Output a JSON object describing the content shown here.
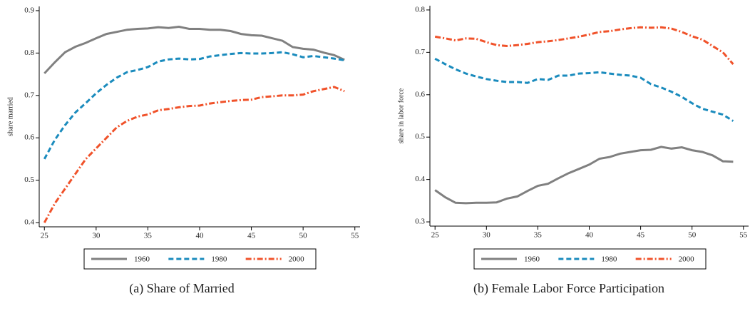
{
  "chart_data": [
    {
      "type": "line",
      "caption": "(a) Share of Married",
      "y_label": "share married",
      "x": [
        25,
        26,
        27,
        28,
        29,
        30,
        31,
        32,
        33,
        34,
        35,
        36,
        37,
        38,
        39,
        40,
        41,
        42,
        43,
        44,
        45,
        46,
        47,
        48,
        49,
        50,
        51,
        52,
        53,
        54
      ],
      "xlim": [
        24.5,
        55.5
      ],
      "xticks": [
        25,
        30,
        35,
        40,
        45,
        50,
        55
      ],
      "ylim": [
        0.39,
        0.91
      ],
      "yticks": [
        0.4,
        0.5,
        0.6,
        0.7,
        0.8,
        0.9
      ],
      "series": [
        {
          "name": "1960",
          "color": "#808080",
          "values": [
            0.752,
            0.778,
            0.802,
            0.815,
            0.824,
            0.835,
            0.845,
            0.85,
            0.855,
            0.857,
            0.858,
            0.861,
            0.859,
            0.862,
            0.857,
            0.857,
            0.855,
            0.855,
            0.852,
            0.845,
            0.842,
            0.841,
            0.835,
            0.829,
            0.814,
            0.81,
            0.808,
            0.801,
            0.795,
            0.784
          ]
        },
        {
          "name": "1980",
          "color": "#1a8bbd",
          "values": [
            0.55,
            0.595,
            0.63,
            0.66,
            0.682,
            0.705,
            0.725,
            0.742,
            0.755,
            0.76,
            0.767,
            0.78,
            0.785,
            0.787,
            0.785,
            0.786,
            0.792,
            0.795,
            0.798,
            0.8,
            0.799,
            0.799,
            0.8,
            0.802,
            0.797,
            0.79,
            0.793,
            0.79,
            0.787,
            0.783
          ]
        },
        {
          "name": "2000",
          "color": "#f0522a",
          "values": [
            0.4,
            0.445,
            0.48,
            0.515,
            0.55,
            0.575,
            0.6,
            0.625,
            0.64,
            0.65,
            0.655,
            0.665,
            0.668,
            0.672,
            0.675,
            0.676,
            0.681,
            0.684,
            0.687,
            0.689,
            0.69,
            0.696,
            0.698,
            0.7,
            0.7,
            0.702,
            0.71,
            0.715,
            0.72,
            0.71
          ]
        }
      ]
    },
    {
      "type": "line",
      "caption": "(b) Female Labor Force Participation",
      "y_label": "share in labor force",
      "x": [
        25,
        26,
        27,
        28,
        29,
        30,
        31,
        32,
        33,
        34,
        35,
        36,
        37,
        38,
        39,
        40,
        41,
        42,
        43,
        44,
        45,
        46,
        47,
        48,
        49,
        50,
        51,
        52,
        53,
        54
      ],
      "xlim": [
        24.5,
        55.5
      ],
      "xticks": [
        25,
        30,
        35,
        40,
        45,
        50,
        55
      ],
      "ylim": [
        0.29,
        0.81
      ],
      "yticks": [
        0.3,
        0.4,
        0.5,
        0.6,
        0.7,
        0.8
      ],
      "series": [
        {
          "name": "1960",
          "color": "#808080",
          "values": [
            0.375,
            0.358,
            0.345,
            0.344,
            0.345,
            0.345,
            0.346,
            0.355,
            0.36,
            0.373,
            0.385,
            0.39,
            0.403,
            0.415,
            0.425,
            0.435,
            0.449,
            0.453,
            0.461,
            0.465,
            0.469,
            0.47,
            0.477,
            0.473,
            0.476,
            0.469,
            0.465,
            0.457,
            0.443,
            0.442
          ]
        },
        {
          "name": "1980",
          "color": "#1a8bbd",
          "values": [
            0.685,
            0.672,
            0.66,
            0.65,
            0.643,
            0.637,
            0.633,
            0.63,
            0.63,
            0.628,
            0.637,
            0.635,
            0.645,
            0.645,
            0.65,
            0.651,
            0.653,
            0.65,
            0.647,
            0.645,
            0.64,
            0.625,
            0.617,
            0.607,
            0.595,
            0.58,
            0.567,
            0.56,
            0.553,
            0.538
          ]
        },
        {
          "name": "2000",
          "color": "#f0522a",
          "values": [
            0.737,
            0.733,
            0.728,
            0.733,
            0.732,
            0.724,
            0.717,
            0.715,
            0.717,
            0.72,
            0.724,
            0.726,
            0.729,
            0.733,
            0.737,
            0.742,
            0.748,
            0.75,
            0.754,
            0.757,
            0.759,
            0.758,
            0.759,
            0.756,
            0.748,
            0.738,
            0.73,
            0.715,
            0.7,
            0.672
          ]
        }
      ]
    }
  ]
}
